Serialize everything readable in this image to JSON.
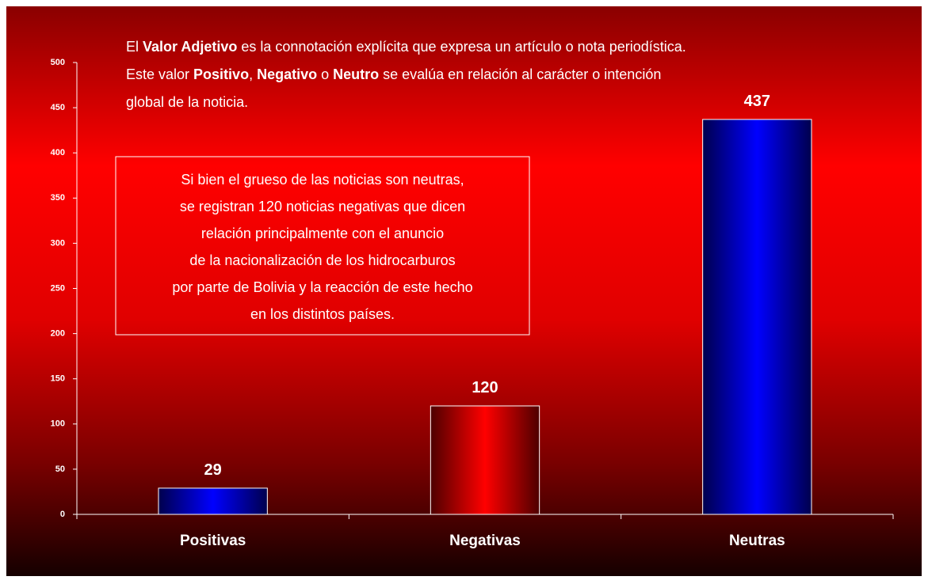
{
  "chart_data": {
    "type": "bar",
    "categories": [
      "Positivas",
      "Negativas",
      "Neutras"
    ],
    "values": [
      29,
      120,
      437
    ],
    "colors": [
      "#0000ff",
      "#ff0000",
      "#0000ff"
    ],
    "ylim": [
      0,
      500
    ],
    "yticks": [
      0,
      50,
      100,
      150,
      200,
      250,
      300,
      350,
      400,
      450,
      500
    ],
    "description": [
      [
        {
          "text": "El ",
          "bold": false
        },
        {
          "text": "Valor Adjetivo",
          "bold": true
        },
        {
          "text": " es la connotación explícita que expresa un artículo o nota periodística.",
          "bold": false
        }
      ],
      [
        {
          "text": "Este valor ",
          "bold": false
        },
        {
          "text": "Positivo",
          "bold": true
        },
        {
          "text": ", ",
          "bold": false
        },
        {
          "text": "Negativo",
          "bold": true
        },
        {
          "text": " o ",
          "bold": false
        },
        {
          "text": "Neutro",
          "bold": true
        },
        {
          "text": " se evalúa en relación al carácter o intención",
          "bold": false
        }
      ],
      [
        {
          "text": "global de la noticia.",
          "bold": false
        }
      ]
    ],
    "annotation": [
      "Si bien el grueso de las noticias son neutras,",
      "se registran 120 noticias negativas que dicen",
      "relación principalmente con el anuncio",
      "de la nacionalización de los hidrocarburos",
      "por parte de Bolivia y la reacción de este hecho",
      "en los distintos países."
    ]
  }
}
